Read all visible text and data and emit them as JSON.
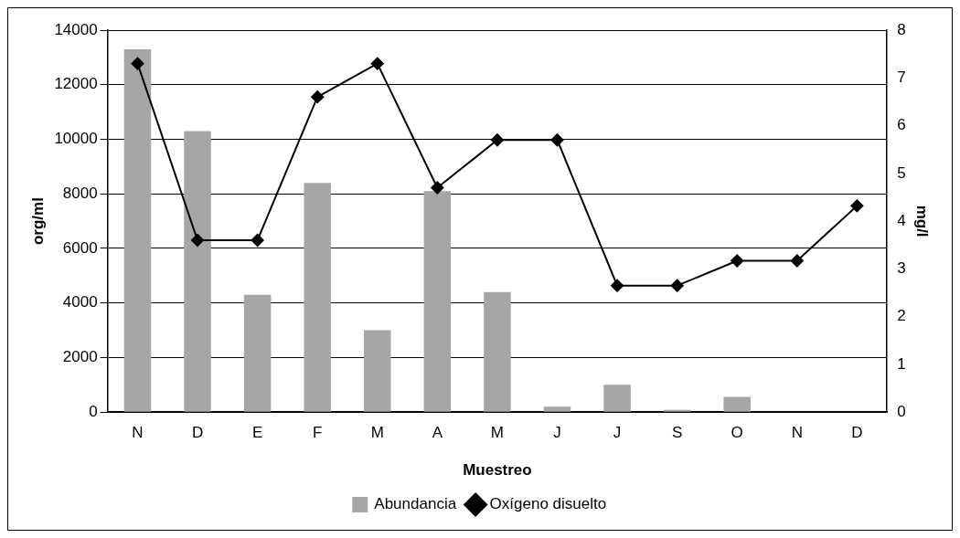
{
  "chart_data": {
    "type": "bar",
    "xlabel": "Muestreo",
    "ylabel": "org/ml",
    "y2label": "mg/l",
    "categories": [
      "N",
      "D",
      "E",
      "F",
      "M",
      "A",
      "M",
      "J",
      "J",
      "S",
      "O",
      "N",
      "D"
    ],
    "series": [
      {
        "name": "Abundancia",
        "color": "#a6a6a6",
        "values": [
          13300,
          10300,
          4300,
          8400,
          3000,
          8100,
          4400,
          200,
          1000,
          80,
          560,
          0,
          0
        ]
      },
      {
        "name": "Oxígeno disuelto",
        "type": "line",
        "axis": "y2",
        "color": "#000000",
        "marker": "diamond",
        "values": [
          7.3,
          3.6,
          3.6,
          6.6,
          7.3,
          4.7,
          5.7,
          5.7,
          2.65,
          2.65,
          3.17,
          3.17,
          4.32
        ]
      }
    ],
    "ylim": [
      0,
      14000
    ],
    "yticks": [
      0,
      2000,
      4000,
      6000,
      8000,
      10000,
      12000,
      14000
    ],
    "y2lim": [
      0,
      8
    ],
    "y2ticks": [
      0,
      1,
      2,
      3,
      4,
      5,
      6,
      7,
      8
    ],
    "grid": "y",
    "legend": "bottom"
  }
}
